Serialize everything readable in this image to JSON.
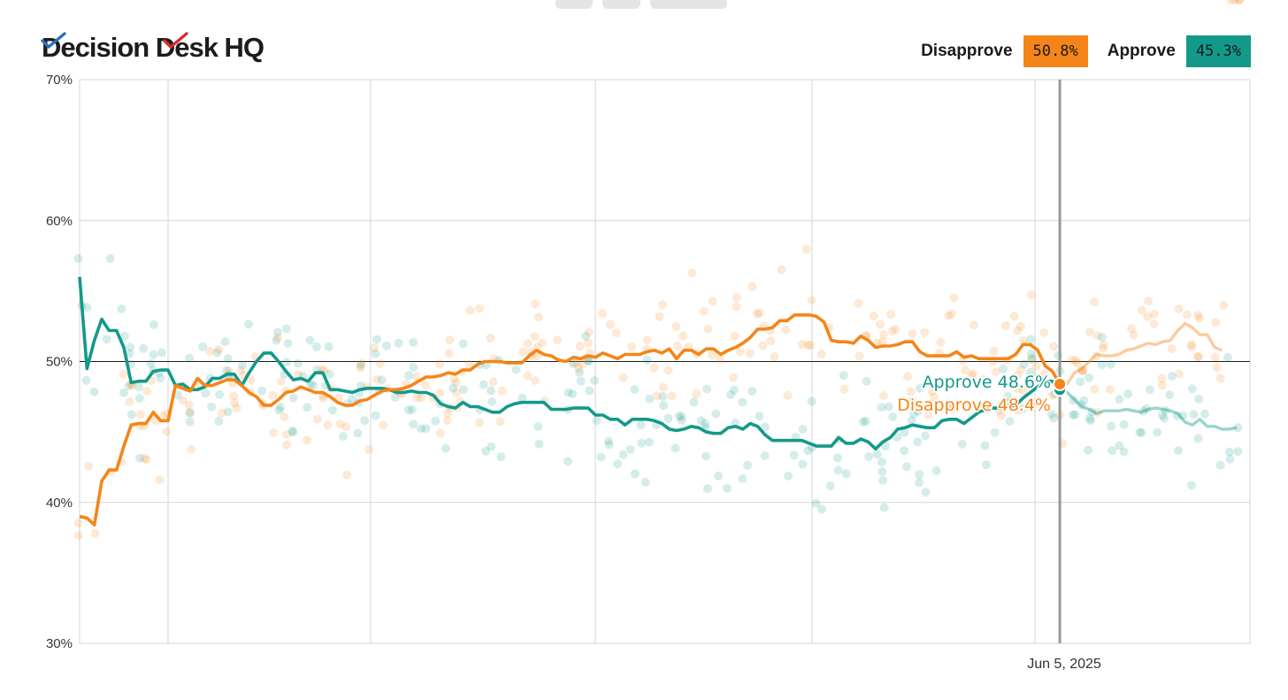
{
  "header": {
    "logo_text": "Decision Desk HQ",
    "legend": [
      {
        "label": "Disapprove",
        "value": "50.8%",
        "color": "#f58518"
      },
      {
        "label": "Approve",
        "value": "45.3%",
        "color": "#13998a"
      }
    ]
  },
  "chart_data": {
    "type": "line",
    "title": "",
    "xlabel": "",
    "ylabel": "",
    "ylim": [
      30,
      70
    ],
    "y_ticks": [
      "70%",
      "60%",
      "50%",
      "40%",
      "30%"
    ],
    "x_tick_label": "Jun 5, 2025",
    "reference_line": 50,
    "colors": {
      "approve": "#13998a",
      "disapprove": "#f58518"
    },
    "hover": {
      "approve_label": "Approve 48.6%",
      "disapprove_label": "Disapprove 48.4%"
    },
    "series": [
      {
        "name": "Approve",
        "color": "#13998a",
        "values": [
          56.0,
          49.5,
          51.5,
          53.0,
          52.2,
          52.2,
          51.0,
          48.5,
          48.6,
          48.6,
          49.3,
          49.4,
          49.4,
          48.3,
          48.4,
          48.0,
          48.0,
          48.2,
          48.8,
          48.8,
          49.1,
          49.1,
          48.3,
          49.2,
          50.0,
          50.6,
          50.6,
          50.0,
          49.3,
          48.7,
          48.8,
          48.6,
          49.2,
          49.2,
          48.0,
          48.0,
          47.9,
          47.8,
          48.0,
          48.1,
          48.1,
          48.1,
          48.0,
          47.8,
          47.8,
          47.9,
          47.8,
          47.8,
          47.6,
          47.0,
          46.8,
          46.7,
          47.1,
          46.8,
          46.8,
          46.6,
          46.4,
          46.4,
          46.8,
          47.0,
          47.1,
          47.1,
          47.1,
          47.1,
          46.6,
          46.6,
          46.6,
          46.7,
          46.7,
          46.7,
          46.2,
          46.2,
          45.9,
          45.9,
          45.5,
          45.9,
          45.9,
          45.9,
          45.8,
          45.6,
          45.2,
          45.1,
          45.2,
          45.4,
          45.3,
          45.0,
          44.9,
          44.9,
          45.3,
          45.4,
          45.2,
          45.6,
          45.4,
          44.8,
          44.4,
          44.4,
          44.4,
          44.4,
          44.4,
          44.2,
          44.0,
          44.0,
          44.0,
          44.6,
          44.2,
          44.2,
          44.5,
          44.3,
          43.8,
          44.3,
          44.6,
          45.2,
          45.3,
          45.5,
          45.4,
          45.3,
          45.3,
          45.8,
          45.9,
          45.9,
          45.6,
          46.0,
          46.4,
          46.6,
          46.7,
          46.7,
          46.8,
          46.9,
          47.4,
          47.8,
          48.2,
          48.6,
          48.6,
          48.0,
          47.8,
          47.3,
          46.8,
          46.6,
          46.3,
          46.5,
          46.5,
          46.5,
          46.6,
          46.5,
          46.4,
          46.6,
          46.7,
          46.6,
          46.5,
          46.3,
          45.7,
          45.5,
          45.9,
          45.4,
          45.4,
          45.2,
          45.2,
          45.3
        ],
        "faded_from_index": 133
      },
      {
        "name": "Disapprove",
        "color": "#f58518",
        "values": [
          39.0,
          38.9,
          38.4,
          41.5,
          42.3,
          42.3,
          44.0,
          45.5,
          45.6,
          45.6,
          46.4,
          45.8,
          45.8,
          48.3,
          48.1,
          47.9,
          48.8,
          48.3,
          48.3,
          48.5,
          48.7,
          48.7,
          48.3,
          47.8,
          47.5,
          46.9,
          46.9,
          47.3,
          47.8,
          47.9,
          48.2,
          48.0,
          47.8,
          47.8,
          47.5,
          47.1,
          46.9,
          46.9,
          47.2,
          47.3,
          47.6,
          47.9,
          48.0,
          48.0,
          48.1,
          48.3,
          48.6,
          48.9,
          48.9,
          49.0,
          49.2,
          49.1,
          49.4,
          49.4,
          49.8,
          50.0,
          50.0,
          50.0,
          49.9,
          49.9,
          49.9,
          50.4,
          50.8,
          50.5,
          50.4,
          50.1,
          50.0,
          50.3,
          50.2,
          50.4,
          50.3,
          50.6,
          50.4,
          50.2,
          50.5,
          50.5,
          50.5,
          50.7,
          50.8,
          50.6,
          50.9,
          50.2,
          50.8,
          50.8,
          50.5,
          50.9,
          50.9,
          50.5,
          50.8,
          51.0,
          51.3,
          51.7,
          52.3,
          52.3,
          52.4,
          52.9,
          52.9,
          53.3,
          53.3,
          53.3,
          53.2,
          52.8,
          51.5,
          51.4,
          51.4,
          51.3,
          51.8,
          51.5,
          51.0,
          51.1,
          51.1,
          51.2,
          51.4,
          51.4,
          50.7,
          50.4,
          50.4,
          50.4,
          50.4,
          50.7,
          50.3,
          50.4,
          50.2,
          50.2,
          50.2,
          50.2,
          50.2,
          50.5,
          51.2,
          51.2,
          50.8,
          49.7,
          49.3,
          48.4,
          48.4,
          49.2,
          49.5,
          50.0,
          50.5,
          50.4,
          50.4,
          50.5,
          50.8,
          50.9,
          51.1,
          51.3,
          51.2,
          51.4,
          51.5,
          52.2,
          52.7,
          52.4,
          51.9,
          51.9,
          51.0,
          50.8
        ],
        "faded_from_index": 133
      }
    ]
  }
}
